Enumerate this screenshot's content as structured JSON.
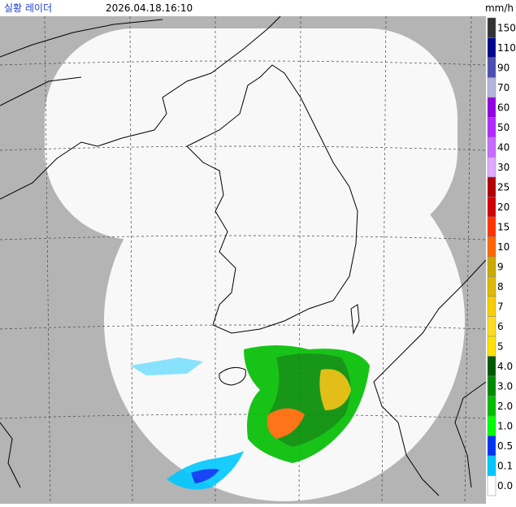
{
  "header": {
    "title": "실황 레이더",
    "time": "2026.04.18.16:10"
  },
  "legend": {
    "unit": "mm/h",
    "items": [
      {
        "label": "150",
        "color": "#333333"
      },
      {
        "label": "110",
        "color": "#00068f"
      },
      {
        "label": "90",
        "color": "#4c4eb1"
      },
      {
        "label": "70",
        "color": "#b3b4de"
      },
      {
        "label": "60",
        "color": "#9300e4"
      },
      {
        "label": "50",
        "color": "#b329ff"
      },
      {
        "label": "40",
        "color": "#c969ff"
      },
      {
        "label": "30",
        "color": "#e0a9ff"
      },
      {
        "label": "25",
        "color": "#b40000"
      },
      {
        "label": "20",
        "color": "#d20000"
      },
      {
        "label": "15",
        "color": "#ff3300"
      },
      {
        "label": "10",
        "color": "#ff6600"
      },
      {
        "label": "9",
        "color": "#ccaa00"
      },
      {
        "label": "8",
        "color": "#e0b900"
      },
      {
        "label": "7",
        "color": "#f9cd00"
      },
      {
        "label": "6",
        "color": "#ffdc1f"
      },
      {
        "label": "5",
        "color": "#ffe100"
      },
      {
        "label": "4.0",
        "color": "#005a00"
      },
      {
        "label": "3.0",
        "color": "#008c00"
      },
      {
        "label": "2.0",
        "color": "#00be00"
      },
      {
        "label": "1.0",
        "color": "#00ff00"
      },
      {
        "label": "0.5",
        "color": "#0033f5"
      },
      {
        "label": "0.1",
        "color": "#00c8ff"
      },
      {
        "label": "0.0",
        "color": "#ffffff"
      }
    ]
  }
}
